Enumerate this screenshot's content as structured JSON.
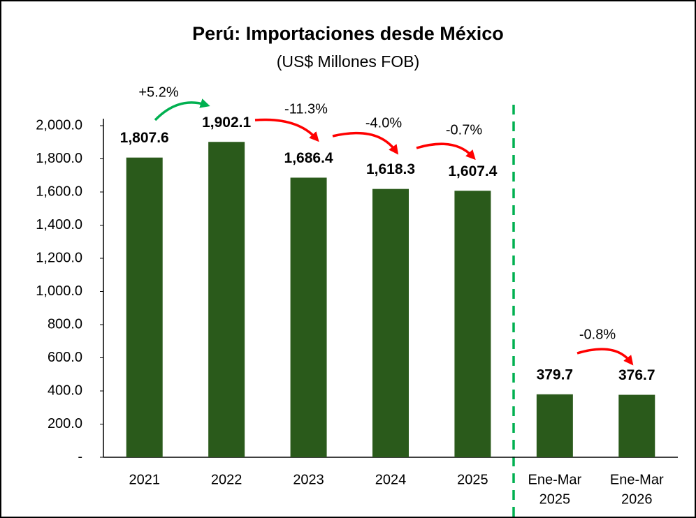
{
  "chart_data": {
    "type": "bar",
    "title": "Perú: Importaciones desde México",
    "subtitle": "(US$ Millones FOB)",
    "categories": [
      "2021",
      "2022",
      "2023",
      "2024",
      "2025",
      [
        "Ene-Mar",
        "2025"
      ],
      [
        "Ene-Mar",
        "2026"
      ]
    ],
    "values": [
      1807.6,
      1902.1,
      1686.4,
      1618.3,
      1607.4,
      379.7,
      376.7
    ],
    "value_labels": [
      "1,807.6",
      "1,902.1",
      "1,686.4",
      "1,618.3",
      "1,607.4",
      "379.7",
      "376.7"
    ],
    "color": "#2a5a1b",
    "ylim": [
      0,
      2000
    ],
    "yticks": [
      {
        "value": 0,
        "label": "-"
      },
      {
        "value": 200,
        "label": "200.0"
      },
      {
        "value": 400,
        "label": "400.0"
      },
      {
        "value": 600,
        "label": "600.0"
      },
      {
        "value": 800,
        "label": "800.0"
      },
      {
        "value": 1000,
        "label": "1,000.0"
      },
      {
        "value": 1200,
        "label": "1,200.0"
      },
      {
        "value": 1400,
        "label": "1,400.0"
      },
      {
        "value": 1600,
        "label": "1,600.0"
      },
      {
        "value": 1800,
        "label": "1,800.0"
      },
      {
        "value": 2000,
        "label": "2,000.0"
      }
    ],
    "grid": false,
    "annotations": [
      {
        "text": "+5.2%",
        "color": "#00b050"
      },
      {
        "text": "-11.3%",
        "color": "#ff0000"
      },
      {
        "text": "-4.0%",
        "color": "#ff0000"
      },
      {
        "text": "-0.7%",
        "color": "#ff0000"
      },
      {
        "text": "-0.8%",
        "color": "#ff0000"
      }
    ]
  }
}
